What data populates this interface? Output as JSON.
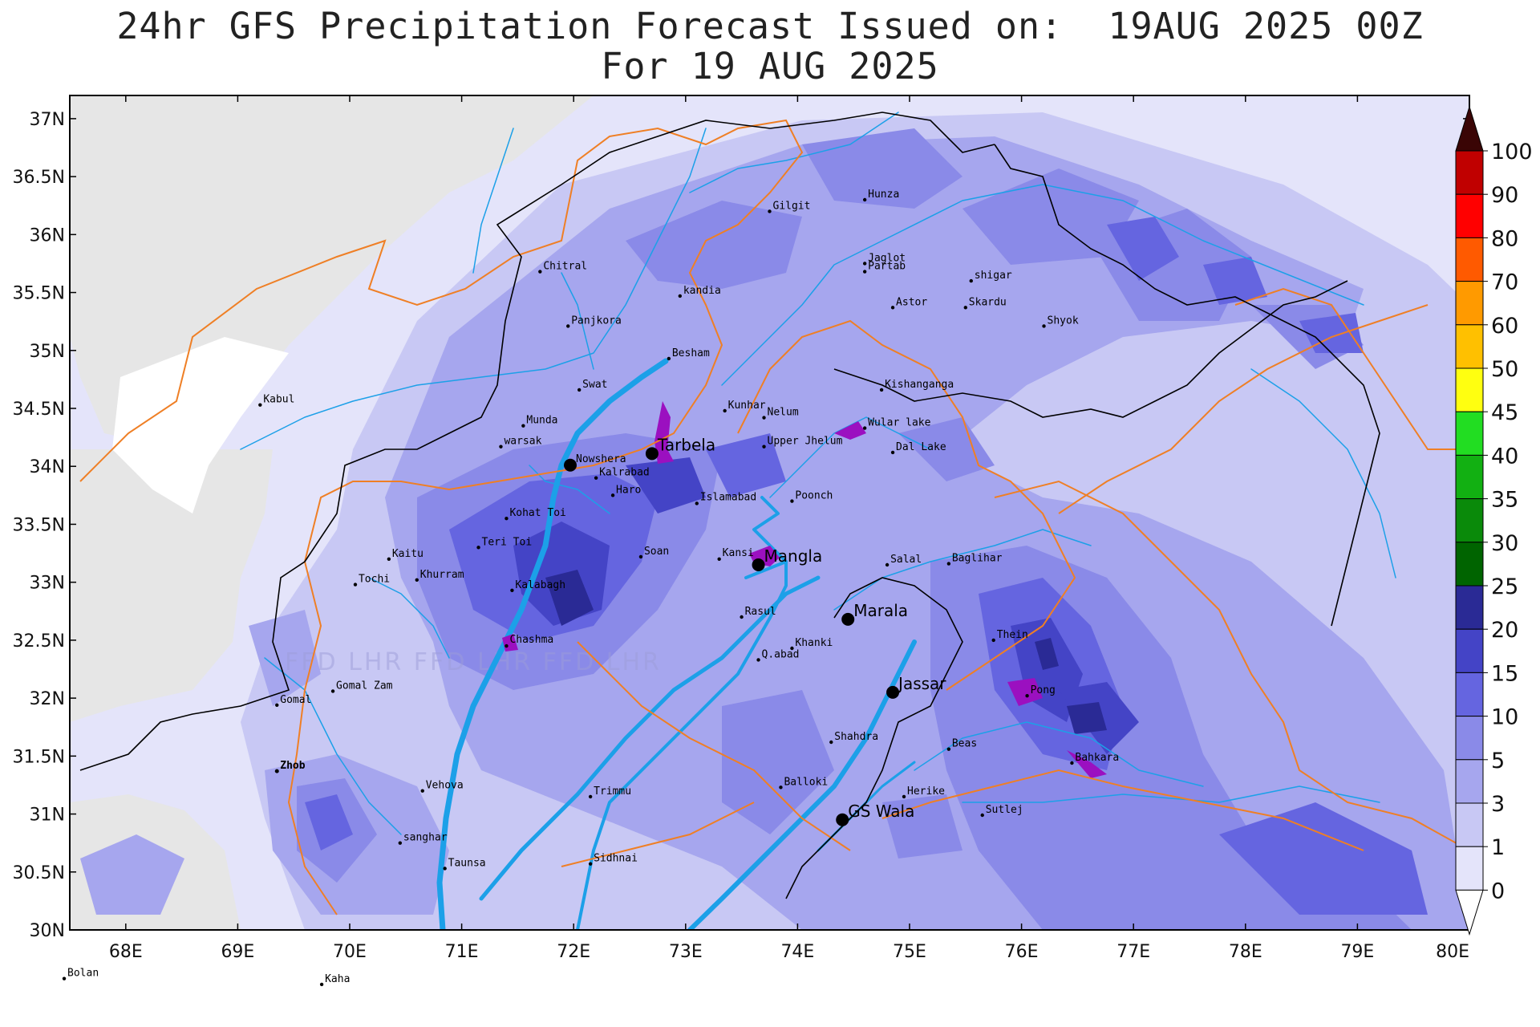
{
  "title": {
    "line1": "24hr GFS Precipitation Forecast Issued on:  19AUG 2025 00Z",
    "line2": "For 19 AUG 2025"
  },
  "map": {
    "lon_range": [
      67.5,
      80
    ],
    "lat_range": [
      30,
      37.2
    ],
    "lon_ticks": [
      "68E",
      "69E",
      "70E",
      "71E",
      "72E",
      "73E",
      "74E",
      "75E",
      "76E",
      "77E",
      "78E",
      "79E",
      "80E"
    ],
    "lat_ticks": [
      "30N",
      "30.5N",
      "31N",
      "31.5N",
      "32N",
      "32.5N",
      "33N",
      "33.5N",
      "34N",
      "34.5N",
      "35N",
      "35.5N",
      "36N",
      "36.5N",
      "37N"
    ],
    "watermark": "FFD LHR FFD LHR FFD LHR",
    "colors": {
      "river": "#1ca0e8",
      "province_border": "#ef7f25",
      "intl_border": "#000000",
      "reservoir": "#9b10c0"
    }
  },
  "colorbar": {
    "labels": [
      "0",
      "1",
      "3",
      "5",
      "10",
      "15",
      "20",
      "25",
      "30",
      "35",
      "40",
      "45",
      "50",
      "60",
      "70",
      "80",
      "90",
      "100"
    ],
    "colors": [
      "#e6e6e6",
      "#e4e4fa",
      "#c8c8f4",
      "#a6a6ee",
      "#8a8ae8",
      "#6565e0",
      "#4444c6",
      "#2a2a95",
      "#006400",
      "#0a8a0a",
      "#12b012",
      "#22dd22",
      "#ffff10",
      "#ffc000",
      "#ff9a00",
      "#ff5a00",
      "#ff0000",
      "#c00000",
      "#700000",
      "#3a0505"
    ]
  },
  "cities": [
    {
      "name": "Hunza",
      "lon": 74.6,
      "lat": 36.3
    },
    {
      "name": "Gilgit",
      "lon": 73.75,
      "lat": 36.2
    },
    {
      "name": "Jaglot",
      "lon": 74.6,
      "lat": 35.75
    },
    {
      "name": "Partab",
      "lon": 74.6,
      "lat": 35.68
    },
    {
      "name": "shigar",
      "lon": 75.55,
      "lat": 35.6
    },
    {
      "name": "Chitral",
      "lon": 71.7,
      "lat": 35.68
    },
    {
      "name": "kandia",
      "lon": 72.95,
      "lat": 35.47
    },
    {
      "name": "Astor",
      "lon": 74.85,
      "lat": 35.37
    },
    {
      "name": "Skardu",
      "lon": 75.5,
      "lat": 35.37
    },
    {
      "name": "Panjkora",
      "lon": 71.95,
      "lat": 35.21
    },
    {
      "name": "Shyok",
      "lon": 76.2,
      "lat": 35.21
    },
    {
      "name": "Besham",
      "lon": 72.85,
      "lat": 34.93
    },
    {
      "name": "Swat",
      "lon": 72.05,
      "lat": 34.66
    },
    {
      "name": "Kabul",
      "lon": 69.2,
      "lat": 34.53
    },
    {
      "name": "Kishanganga",
      "lon": 74.75,
      "lat": 34.66
    },
    {
      "name": "Kunhar",
      "lon": 73.35,
      "lat": 34.48
    },
    {
      "name": "Nelum",
      "lon": 73.7,
      "lat": 34.42
    },
    {
      "name": "Munda",
      "lon": 71.55,
      "lat": 34.35
    },
    {
      "name": "Wular lake",
      "lon": 74.6,
      "lat": 34.33
    },
    {
      "name": "warsak",
      "lon": 71.35,
      "lat": 34.17
    },
    {
      "name": "Upper Jhelum",
      "lon": 73.7,
      "lat": 34.17
    },
    {
      "name": "Dal Lake",
      "lon": 74.85,
      "lat": 34.12
    },
    {
      "name": "Kalrabad",
      "lon": 72.2,
      "lat": 33.9
    },
    {
      "name": "Haro",
      "lon": 72.35,
      "lat": 33.75
    },
    {
      "name": "Poonch",
      "lon": 73.95,
      "lat": 33.7
    },
    {
      "name": "Kohat Toi",
      "lon": 71.4,
      "lat": 33.55
    },
    {
      "name": "Teri Toi",
      "lon": 71.15,
      "lat": 33.3
    },
    {
      "name": "Kaitu",
      "lon": 70.35,
      "lat": 33.2
    },
    {
      "name": "Soan",
      "lon": 72.6,
      "lat": 33.22
    },
    {
      "name": "Salal",
      "lon": 74.8,
      "lat": 33.15
    },
    {
      "name": "Baglihar",
      "lon": 75.35,
      "lat": 33.16
    },
    {
      "name": "Khurram",
      "lon": 70.6,
      "lat": 33.02
    },
    {
      "name": "Tochi",
      "lon": 70.05,
      "lat": 32.98
    },
    {
      "name": "Kalabagh",
      "lon": 71.45,
      "lat": 32.93
    },
    {
      "name": "Rasul",
      "lon": 73.5,
      "lat": 32.7
    },
    {
      "name": "Thein",
      "lon": 75.75,
      "lat": 32.5
    },
    {
      "name": "Khanki",
      "lon": 73.95,
      "lat": 32.43
    },
    {
      "name": "Q.abad",
      "lon": 73.65,
      "lat": 32.33
    },
    {
      "name": "Gomal Zam",
      "lon": 69.85,
      "lat": 32.06
    },
    {
      "name": "Pong",
      "lon": 76.05,
      "lat": 32.02
    },
    {
      "name": "Gomal",
      "lon": 69.35,
      "lat": 31.94
    },
    {
      "name": "Shahdra",
      "lon": 74.3,
      "lat": 31.62
    },
    {
      "name": "Beas",
      "lon": 75.35,
      "lat": 31.56
    },
    {
      "name": "Bahkara",
      "lon": 76.45,
      "lat": 31.44
    },
    {
      "name": "Vehova",
      "lon": 70.65,
      "lat": 31.2
    },
    {
      "name": "Balloki",
      "lon": 73.85,
      "lat": 31.23
    },
    {
      "name": "Herike",
      "lon": 74.95,
      "lat": 31.15
    },
    {
      "name": "Trimmu",
      "lon": 72.15,
      "lat": 31.15
    },
    {
      "name": "Sutlej",
      "lon": 75.65,
      "lat": 30.99
    },
    {
      "name": "sanghar",
      "lon": 70.45,
      "lat": 30.75
    },
    {
      "name": "Taunsa",
      "lon": 70.85,
      "lat": 30.53
    },
    {
      "name": "Sidhnai",
      "lon": 72.15,
      "lat": 30.57
    },
    {
      "name": "Bolan",
      "lon": 67.45,
      "lat": 29.58
    },
    {
      "name": "Kaha",
      "lon": 69.75,
      "lat": 29.53
    }
  ],
  "bold_cities": [
    {
      "name": "Zhob",
      "lon": 69.35,
      "lat": 31.37
    }
  ],
  "dams": [
    {
      "name": "Tarbela",
      "lon": 72.7,
      "lat": 34.11
    },
    {
      "name": "Nowshera",
      "lon": 71.97,
      "lat": 34.01,
      "small": true
    },
    {
      "name": "Islamabad",
      "lon": 73.1,
      "lat": 33.68,
      "small": true,
      "dot": false
    },
    {
      "name": "Kansi",
      "lon": 73.3,
      "lat": 33.2,
      "small": true,
      "dot": false
    },
    {
      "name": "Mangla",
      "lon": 73.65,
      "lat": 33.15
    },
    {
      "name": "Chashma",
      "lon": 71.4,
      "lat": 32.45,
      "small": true,
      "dot": false
    },
    {
      "name": "Marala",
      "lon": 74.45,
      "lat": 32.68
    },
    {
      "name": "Jassar",
      "lon": 74.85,
      "lat": 32.05
    },
    {
      "name": "GS Wala",
      "lon": 74.4,
      "lat": 30.95
    }
  ]
}
